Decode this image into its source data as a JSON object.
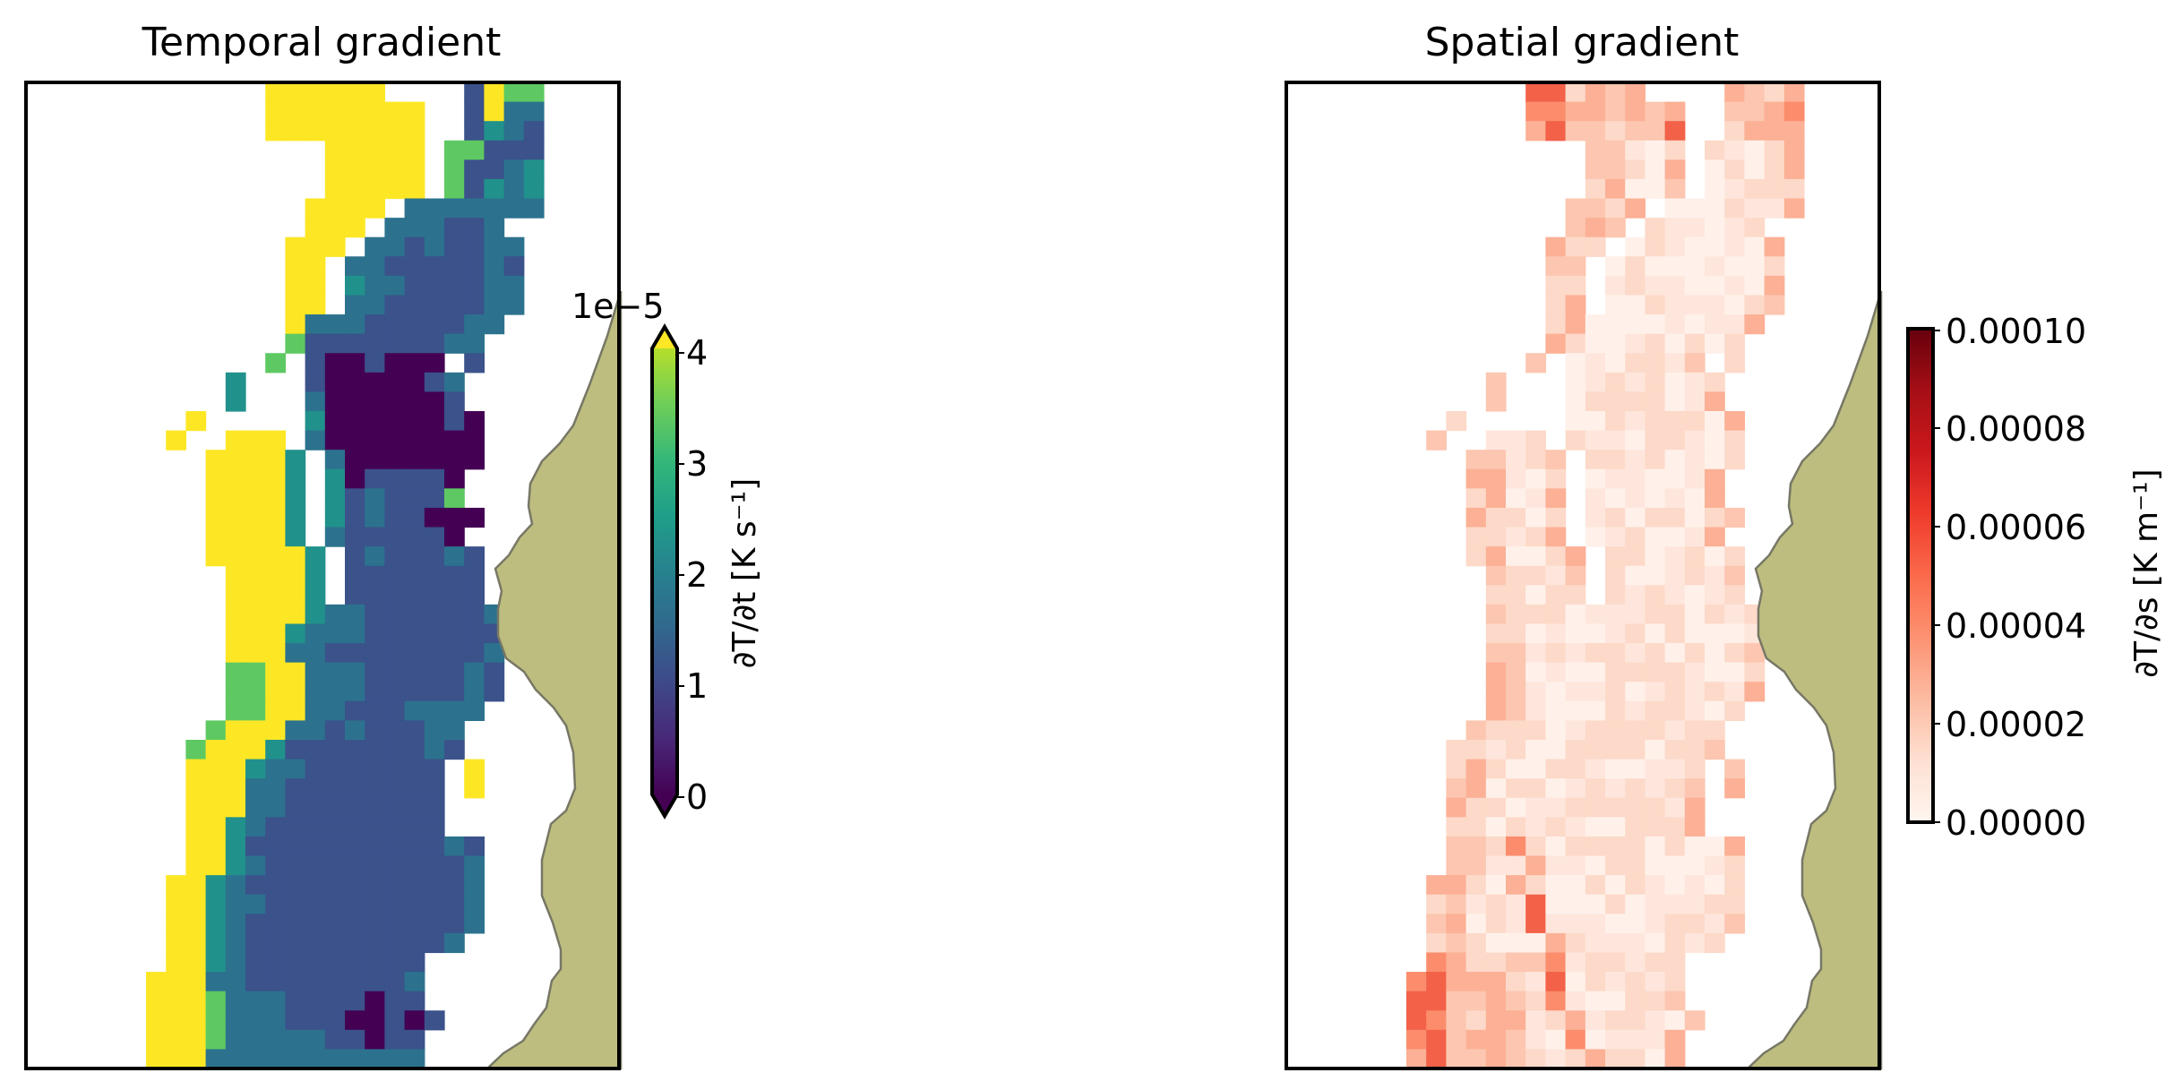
{
  "chart_data": [
    {
      "type": "heatmap",
      "title": "Temporal gradient",
      "colormap": "viridis",
      "colorbar": {
        "label": "∂T/∂t [K s⁻¹]",
        "offset_text": "1e−5",
        "ticks": [
          "0",
          "1",
          "2",
          "3",
          "4"
        ],
        "range": [
          0,
          4
        ],
        "extend": "both"
      },
      "land_color": "#bdbd7f",
      "axes_ticks": "none",
      "grid_rows": [
        "      555555    6544",
        "      55555555  6522",
        "      55555555  6321",
        "         55555 44111",
        "         55555 41123",
        "         55555 41323",
        "        5555 ..22222",
        "        555 ...112  ",
        "       555 .2121122 ",
        "       55 221111121 ",
        "       55 3221111.. ",
        "       55 2211111.. ",
        "       522211111..  ",
        "       41111111..   ",
        "      4 1001000 1   ",
        "    3   10000012    ",
        "    3   20000001    ",
        "  5     300000010   ",
        " 5  555 200000000   ",
        "   55553 20000000   ",
        "   55553 3011110    ",
        "   55553 3121114    ",
        "   55553 31211000   ",
        "   55553 2111110    ",
        "   555553 1211121   ",
        "    55553 1111111   ",
        "    55553 1111111   ",
        "    555532211111123 ",
        "    555322211111113 ",
        "    55522111111112  ",
        "    44552221111121  ",
        "    44552221111121  ",
        "    4455221112222   ",
        "   4555221211122    ",
        "  45553111111121    ",
        "  5553221111111 5   ",
        "  5552211111111 5   ",
        "  5552211111111     ",
        "  5532111111111     ",
        "  553111111111121   ",
        "  553211111111112   ",
        " 5532111111111112   ",
        " 5532211111111112   ",
        " 5532111111111112   ",
        " 553211111111112    ",
        " 5532111111111      ",
        "55522111111112      ",
        "55542221111011      ",
        "555422211100101     ",
        "55542222211011      ",
        "55522222222222      "
      ]
    },
    {
      "type": "heatmap",
      "title": "Spatial gradient",
      "colormap": "Reds",
      "colorbar": {
        "label": "∂T/∂s [K m⁻¹]",
        "ticks": [
          "0.00000",
          "0.00002",
          "0.00004",
          "0.00006",
          "0.00008",
          "0.00010"
        ],
        "range": [
          0,
          0.0001
        ],
        "extend": "neither"
      },
      "land_color": "#bdbd7f",
      "axes_ticks": "none"
    }
  ]
}
